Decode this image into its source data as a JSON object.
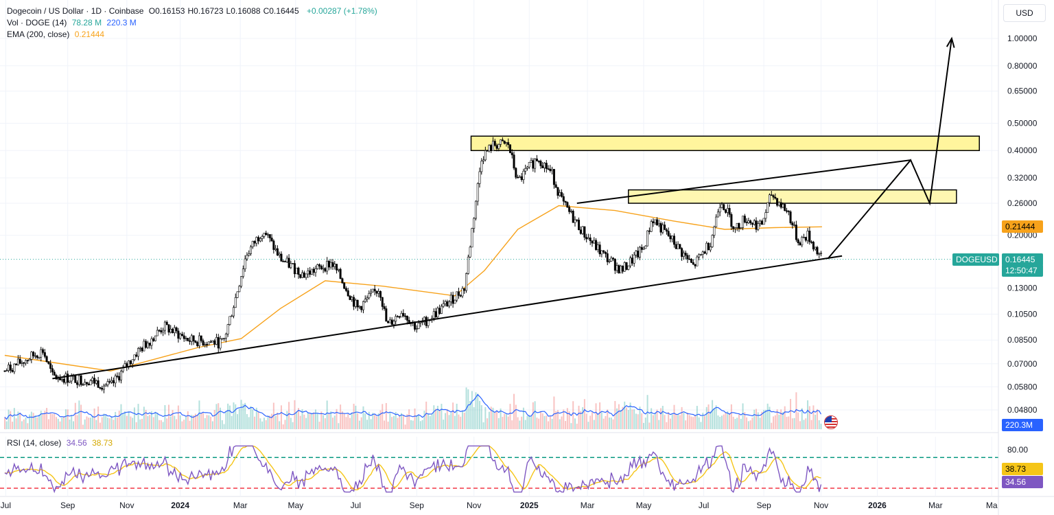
{
  "header": {
    "symbol_title": "Dogecoin / US Dollar · 1D · Coinbase",
    "ohlc": [
      {
        "k": "O",
        "v": "0.16153"
      },
      {
        "k": "H",
        "v": "0.16723"
      },
      {
        "k": "L",
        "v": "0.16088"
      },
      {
        "k": "C",
        "v": "0.16445"
      }
    ],
    "change": "+0.00287 (+1.78%)",
    "volume_label": "Vol · DOGE (14)",
    "volume_value_1": "78.28 M",
    "volume_value_2": "220.3 M",
    "ema_label": "EMA (200, close)",
    "ema_value": "0.21444",
    "currency_button": "USD"
  },
  "rsi_header": {
    "label": "RSI (14, close)",
    "value": "34.56",
    "ma_value": "38.73"
  },
  "colors": {
    "up": "#26a69a",
    "down": "#ef5350",
    "candle": "#000000",
    "ema": "#f7a21b",
    "volume_ma": "#2962ff",
    "rsi": "#7e57c2",
    "rsi_ma": "#f5c518",
    "zone_fill": "#fff59d",
    "upper_band": "#089981",
    "lower_band": "#f23645"
  },
  "price_tags": {
    "ema": "0.21444",
    "symbol": "DOGEUSD",
    "last": "0.16445",
    "countdown": "12:50:47",
    "volume": "220.3M",
    "rsi_ma": "38.73",
    "rsi": "34.56"
  },
  "chart_data": {
    "type": "candlestick",
    "price_scale": "log",
    "y_ticks": [
      "1.00000",
      "0.80000",
      "0.65000",
      "0.50000",
      "0.40000",
      "0.32000",
      "0.26000",
      "0.20000",
      "0.13000",
      "0.10500",
      "0.08500",
      "0.07000",
      "0.05800",
      "0.04800"
    ],
    "rsi_ticks": [
      "80.00"
    ],
    "x_ticks": [
      "Jul",
      "Sep",
      "Nov",
      "2024",
      "Mar",
      "May",
      "Jul",
      "Sep",
      "Nov",
      "2025",
      "Mar",
      "May",
      "Jul",
      "Sep",
      "Nov",
      "2026",
      "Mar",
      "Ma"
    ],
    "rsi_bands": [
      70,
      30
    ],
    "close_path": [
      [
        "2023-07-01",
        0.066
      ],
      [
        "2023-08-10",
        0.078
      ],
      [
        "2023-08-20",
        0.063
      ],
      [
        "2023-09-30",
        0.061
      ],
      [
        "2023-10-20",
        0.058
      ],
      [
        "2023-11-15",
        0.076
      ],
      [
        "2023-12-15",
        0.095
      ],
      [
        "2024-01-10",
        0.085
      ],
      [
        "2024-02-15",
        0.083
      ],
      [
        "2024-02-28",
        0.12
      ],
      [
        "2024-03-10",
        0.17
      ],
      [
        "2024-03-28",
        0.21
      ],
      [
        "2024-04-15",
        0.165
      ],
      [
        "2024-05-10",
        0.145
      ],
      [
        "2024-06-08",
        0.16
      ],
      [
        "2024-07-05",
        0.11
      ],
      [
        "2024-07-28",
        0.13
      ],
      [
        "2024-08-05",
        0.095
      ],
      [
        "2024-08-20",
        0.108
      ],
      [
        "2024-09-05",
        0.094
      ],
      [
        "2024-10-01",
        0.11
      ],
      [
        "2024-10-25",
        0.13
      ],
      [
        "2024-11-12",
        0.38
      ],
      [
        "2024-11-25",
        0.42
      ],
      [
        "2024-12-10",
        0.42
      ],
      [
        "2024-12-20",
        0.31
      ],
      [
        "2025-01-10",
        0.38
      ],
      [
        "2025-01-25",
        0.33
      ],
      [
        "2025-02-05",
        0.26
      ],
      [
        "2025-03-01",
        0.2
      ],
      [
        "2025-03-20",
        0.17
      ],
      [
        "2025-04-08",
        0.15
      ],
      [
        "2025-05-01",
        0.18
      ],
      [
        "2025-05-10",
        0.23
      ],
      [
        "2025-06-01",
        0.19
      ],
      [
        "2025-06-22",
        0.155
      ],
      [
        "2025-07-10",
        0.19
      ],
      [
        "2025-07-21",
        0.27
      ],
      [
        "2025-08-05",
        0.21
      ],
      [
        "2025-08-15",
        0.23
      ],
      [
        "2025-09-01",
        0.215
      ],
      [
        "2025-09-12",
        0.28
      ],
      [
        "2025-09-30",
        0.24
      ],
      [
        "2025-10-10",
        0.19
      ],
      [
        "2025-10-20",
        0.2
      ],
      [
        "2025-11-04",
        0.16445
      ]
    ],
    "ema200_path": [
      [
        "2023-07-01",
        0.075
      ],
      [
        "2023-10-20",
        0.066
      ],
      [
        "2024-01-20",
        0.08
      ],
      [
        "2024-03-05",
        0.086
      ],
      [
        "2024-04-15",
        0.11
      ],
      [
        "2024-06-01",
        0.138
      ],
      [
        "2024-08-01",
        0.132
      ],
      [
        "2024-10-15",
        0.122
      ],
      [
        "2024-11-15",
        0.15
      ],
      [
        "2024-12-20",
        0.21
      ],
      [
        "2025-02-01",
        0.255
      ],
      [
        "2025-04-01",
        0.245
      ],
      [
        "2025-06-01",
        0.225
      ],
      [
        "2025-07-25",
        0.21
      ],
      [
        "2025-09-15",
        0.213
      ],
      [
        "2025-11-04",
        0.21444
      ]
    ],
    "annotations": {
      "resistance_zone_upper": [
        0.4,
        0.45
      ],
      "resistance_zone_lower": [
        0.26,
        0.29
      ],
      "support_trendline": [
        [
          "2023-08-20",
          0.062
        ],
        [
          "2025-11-25",
          0.169
        ]
      ],
      "upper_trendline": [
        [
          "2025-02-20",
          0.26
        ],
        [
          "2026-02-05",
          0.37
        ]
      ],
      "projection_path": [
        [
          "2025-11-10",
          0.165
        ],
        [
          "2026-02-05",
          0.37
        ],
        [
          "2026-02-25",
          0.26
        ],
        [
          "2026-03-20",
          1.0
        ]
      ]
    }
  }
}
